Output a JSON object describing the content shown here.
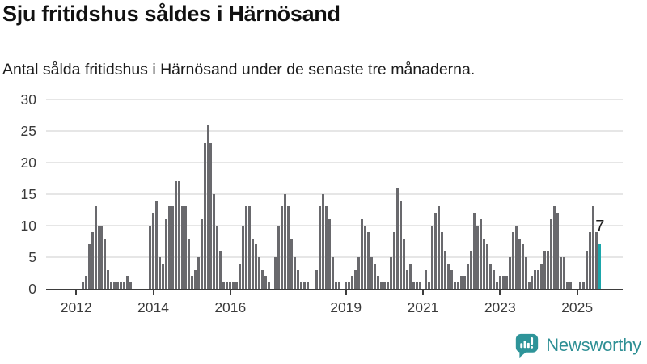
{
  "header": {
    "title": "Sju fritidshus såldes i Härnösand",
    "subtitle": "Antal sålda fritidshus i Härnösand under de senaste tre månaderna."
  },
  "footer": {
    "brand": "Newsworthy"
  },
  "colors": {
    "bar": "#69696d",
    "highlight": "#1ba6ab",
    "grid": "#e6e6e6",
    "axis": "#3d3d3d",
    "text": "#1c1c1c",
    "brand": "#2e8f94"
  },
  "chart_data": {
    "type": "bar",
    "title": "Sju fritidshus såldes i Härnösand",
    "subtitle": "Antal sålda fritidshus i Härnösand under de senaste tre månaderna.",
    "frequency": "monthly",
    "series_start": "2011-04",
    "ylim": [
      0,
      30
    ],
    "y_ticks": [
      0,
      5,
      10,
      15,
      20,
      25,
      30
    ],
    "x_tick_years": [
      2012,
      2014,
      2016,
      2019,
      2021,
      2023,
      2025
    ],
    "grid": true,
    "values": [
      0,
      0,
      0,
      0,
      0,
      0,
      0,
      0,
      0,
      0,
      0,
      1,
      2,
      7,
      9,
      13,
      10,
      10,
      8,
      3,
      1,
      1,
      1,
      1,
      1,
      2,
      1,
      0,
      0,
      0,
      0,
      0,
      10,
      12,
      14,
      5,
      4,
      11,
      13,
      13,
      17,
      17,
      13,
      13,
      8,
      2,
      3,
      5,
      11,
      23,
      26,
      23,
      15,
      10,
      6,
      1,
      1,
      1,
      1,
      1,
      4,
      10,
      13,
      13,
      8,
      7,
      5,
      3,
      2,
      1,
      0,
      5,
      10,
      13,
      15,
      13,
      8,
      5,
      3,
      1,
      1,
      1,
      0,
      0,
      3,
      13,
      15,
      13,
      11,
      5,
      1,
      1,
      0,
      1,
      1,
      2,
      3,
      5,
      11,
      10,
      9,
      5,
      4,
      2,
      1,
      1,
      1,
      5,
      9,
      16,
      14,
      8,
      3,
      4,
      1,
      1,
      1,
      0,
      3,
      1,
      10,
      12,
      13,
      9,
      6,
      4,
      3,
      1,
      1,
      2,
      2,
      4,
      6,
      12,
      10,
      11,
      8,
      7,
      4,
      3,
      1,
      2,
      2,
      2,
      5,
      9,
      10,
      8,
      7,
      5,
      1,
      2,
      3,
      3,
      4,
      6,
      6,
      11,
      13,
      12,
      5,
      5,
      1,
      1,
      0,
      0,
      1,
      1,
      6,
      9,
      13,
      9,
      7
    ],
    "highlight_last": {
      "value": 7,
      "label": "7"
    }
  }
}
